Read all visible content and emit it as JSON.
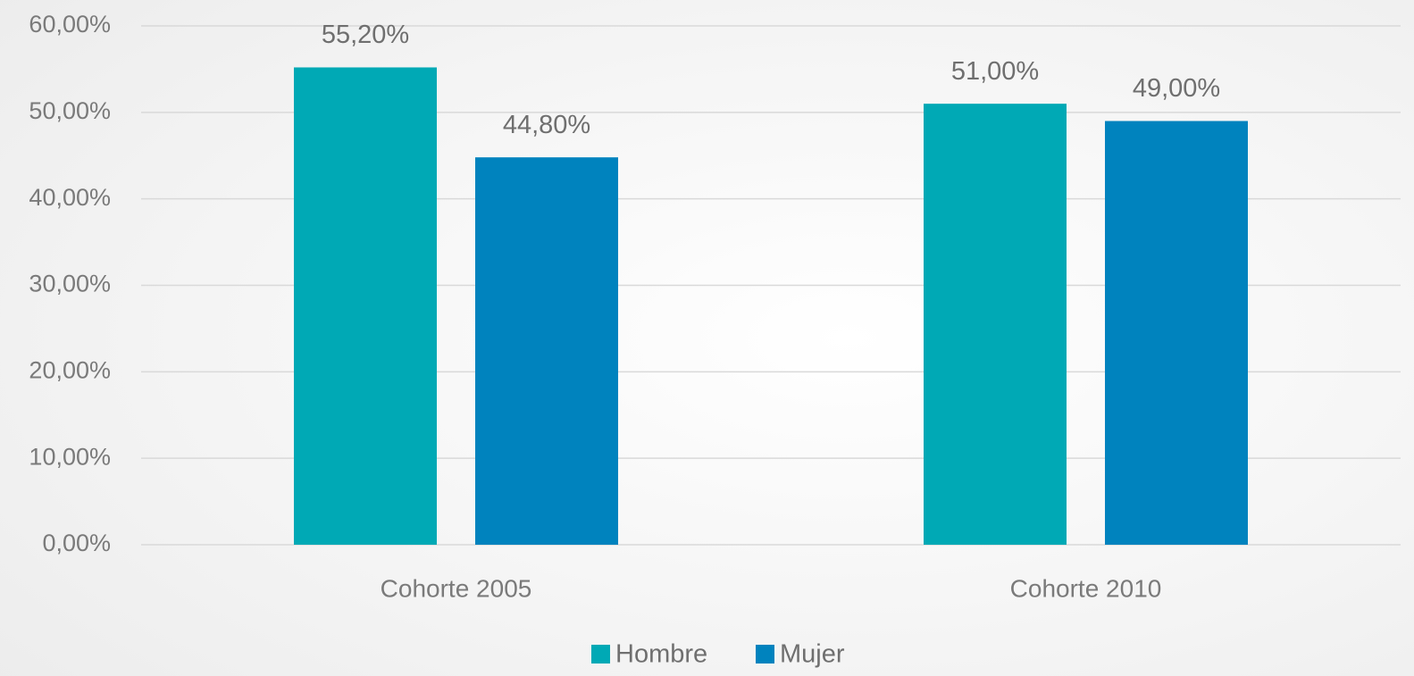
{
  "chart_data": {
    "type": "bar",
    "categories": [
      "Cohorte 2005",
      "Cohorte 2010"
    ],
    "series": [
      {
        "name": "Hombre",
        "color": "#00a9b5",
        "values": [
          55.2,
          51.0
        ],
        "value_labels": [
          "55,20%",
          "51,00%"
        ]
      },
      {
        "name": "Mujer",
        "color": "#0083be",
        "values": [
          44.8,
          49.0
        ],
        "value_labels": [
          "44,80%",
          "49,00%"
        ]
      }
    ],
    "ylim": [
      0,
      60
    ],
    "yticks": [
      {
        "value": 0,
        "label": "0,00%"
      },
      {
        "value": 10,
        "label": "10,00%"
      },
      {
        "value": 20,
        "label": "20,00%"
      },
      {
        "value": 30,
        "label": "30,00%"
      },
      {
        "value": 40,
        "label": "40,00%"
      },
      {
        "value": 50,
        "label": "50,00%"
      },
      {
        "value": 60,
        "label": "60,00%"
      }
    ],
    "grid": true,
    "legend": "bottom"
  }
}
